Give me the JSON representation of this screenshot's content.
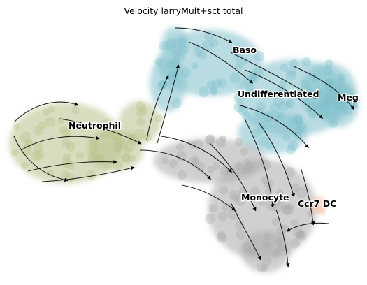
{
  "chart_data": {
    "type": "scatter",
    "title": "Velocity larryMult+sct total",
    "xlabel": "",
    "ylabel": "",
    "grid": false,
    "legend": "on data",
    "overlay": "velocity streamlines",
    "series": [
      {
        "name": "Baso",
        "color": "#7fbfca"
      },
      {
        "name": "Undifferentiated",
        "color": "#7fbfca"
      },
      {
        "name": "Meg",
        "color": "#7fbfca"
      },
      {
        "name": "Neutrophil",
        "color": "#b9c08a"
      },
      {
        "name": "Monocyte",
        "color": "#a9a9a9"
      },
      {
        "name": "Ccr7 DC",
        "color": "#f2b49a"
      }
    ]
  }
}
